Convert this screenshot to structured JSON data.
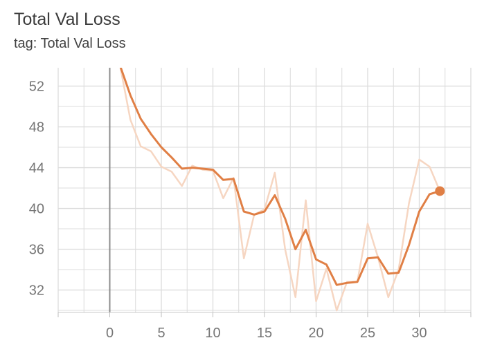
{
  "card": {
    "title": "Total Val Loss",
    "subtitle": "tag: Total Val Loss"
  },
  "chart_data": {
    "type": "line",
    "title": "Total Val Loss",
    "subtitle": "tag: Total Val Loss",
    "xlabel": "",
    "ylabel": "",
    "xlim": [
      -5,
      35
    ],
    "ylim": [
      29.8,
      53.8
    ],
    "x_ticks": [
      0,
      5,
      10,
      15,
      20,
      25,
      30
    ],
    "y_ticks": [
      32,
      36,
      40,
      44,
      48,
      52
    ],
    "grid": true,
    "legend": "none",
    "colors": {
      "smoothed": "#e07f45",
      "raw": "#f6d6c2",
      "grid": "#dcdcdc",
      "axis_zero": "#8c8c8c"
    },
    "series": [
      {
        "role": "raw",
        "x": [
          1,
          2,
          3,
          4,
          5,
          6,
          7,
          8,
          9,
          10,
          11,
          12,
          13,
          14,
          15,
          16,
          17,
          18,
          19,
          20,
          21,
          22,
          23,
          24,
          25,
          26,
          27,
          28,
          29,
          30,
          31,
          32
        ],
        "values": [
          54.0,
          48.7,
          46.1,
          45.6,
          44.1,
          43.6,
          42.2,
          44.2,
          43.8,
          43.7,
          41.0,
          43.0,
          35.1,
          39.4,
          39.9,
          43.5,
          36.0,
          31.3,
          40.8,
          30.9,
          34.1,
          30.0,
          32.8,
          32.8,
          38.5,
          35.2,
          31.3,
          34.0,
          40.5,
          44.8,
          44.1,
          41.7
        ]
      },
      {
        "role": "smoothed",
        "x": [
          1,
          2,
          3,
          4,
          5,
          6,
          7,
          8,
          9,
          10,
          11,
          12,
          13,
          14,
          15,
          16,
          17,
          18,
          19,
          20,
          21,
          22,
          23,
          24,
          25,
          26,
          27,
          28,
          29,
          30,
          31,
          32
        ],
        "values": [
          54.0,
          51.1,
          48.8,
          47.3,
          46.0,
          45.0,
          43.9,
          44.0,
          43.9,
          43.8,
          42.8,
          42.9,
          39.7,
          39.4,
          39.7,
          41.3,
          39.0,
          36.0,
          37.9,
          35.0,
          34.5,
          32.5,
          32.7,
          32.8,
          35.1,
          35.2,
          33.6,
          33.7,
          36.4,
          39.7,
          41.4,
          41.7
        ]
      }
    ]
  }
}
